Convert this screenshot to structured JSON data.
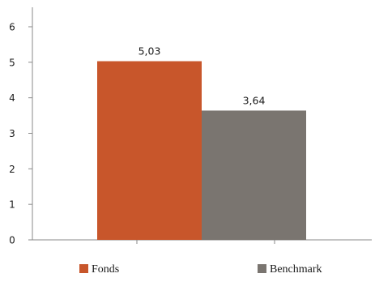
{
  "chart_data": {
    "type": "bar",
    "categories": [
      "Fonds",
      "Benchmark"
    ],
    "values": [
      5.03,
      3.64
    ],
    "value_labels": [
      "5,03",
      "3,64"
    ],
    "colors": [
      "#c8562b",
      "#7a7570"
    ],
    "ylim": [
      0,
      6
    ],
    "y_ticks": [
      "0",
      "1",
      "2",
      "3",
      "4",
      "5",
      "6"
    ],
    "title": "",
    "xlabel": "",
    "ylabel": "",
    "grid": false,
    "legend": {
      "position": "bottom",
      "entries": [
        "Fonds",
        "Benchmark"
      ]
    }
  }
}
